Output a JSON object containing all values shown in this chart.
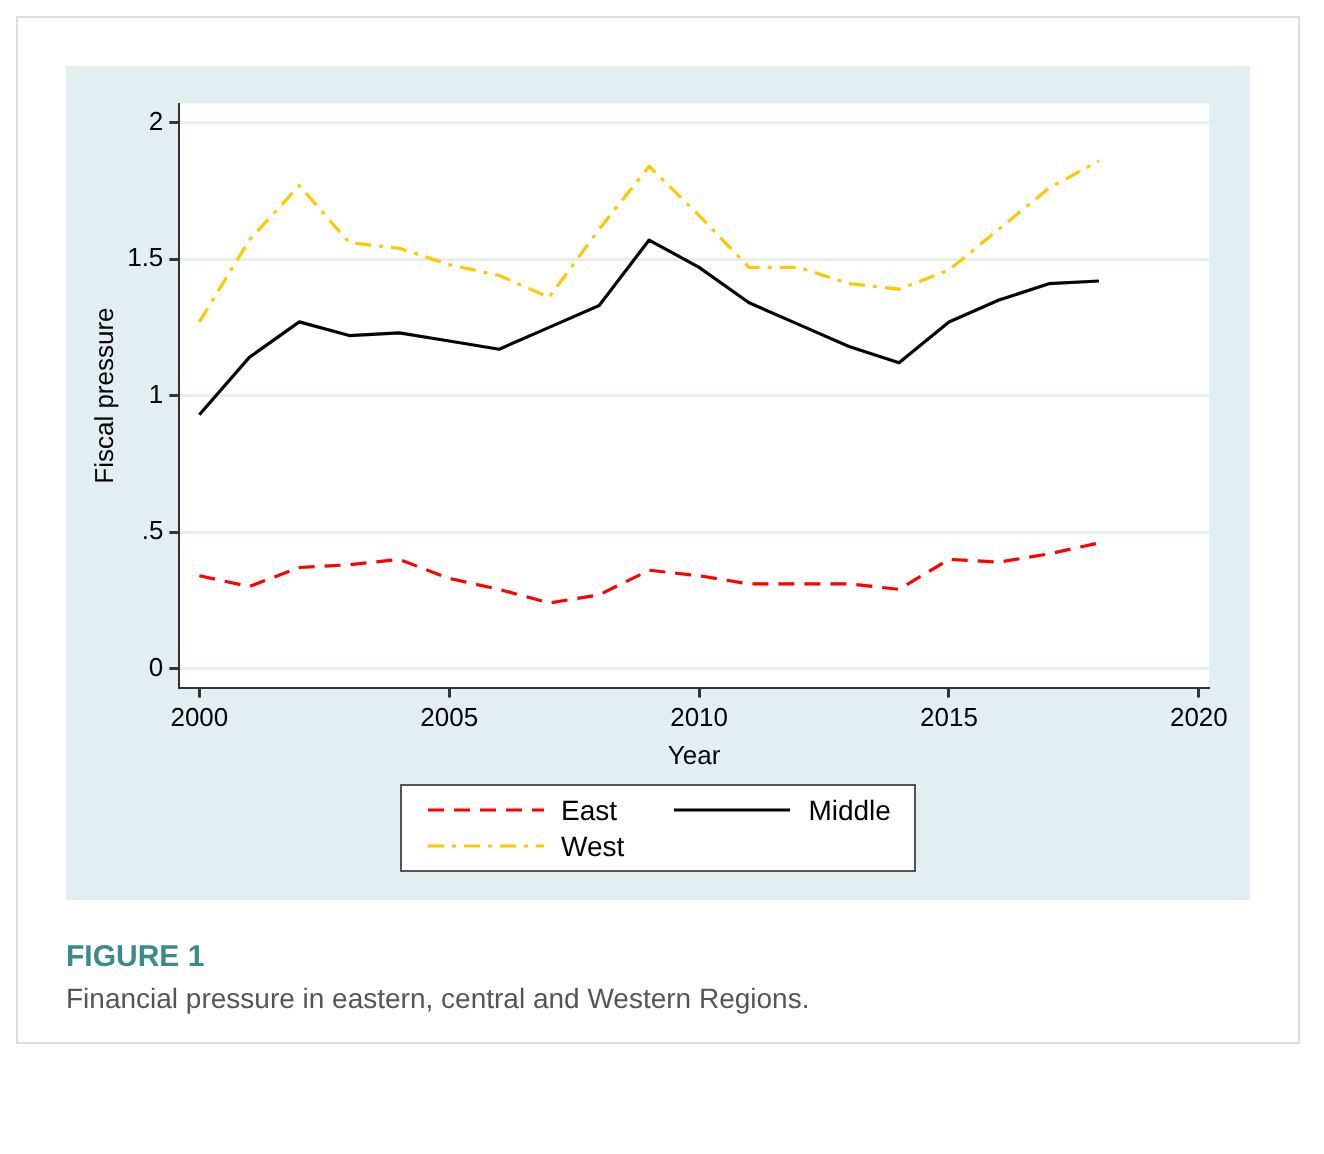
{
  "chart_data": {
    "type": "line",
    "title": "FIGURE 1",
    "subtitle": "Financial pressure in eastern, central and Western Regions.",
    "xlabel": "Year",
    "ylabel": "Fiscal pressure",
    "x": [
      2000,
      2001,
      2002,
      2003,
      2004,
      2005,
      2006,
      2007,
      2008,
      2009,
      2010,
      2011,
      2012,
      2013,
      2014,
      2015,
      2016,
      2017,
      2018
    ],
    "series": [
      {
        "name": "East",
        "color": "#ff0000",
        "line_style": "dashed",
        "values": [
          0.34,
          0.3,
          0.37,
          0.38,
          0.4,
          0.33,
          0.29,
          0.24,
          0.27,
          0.36,
          0.34,
          0.31,
          0.31,
          0.31,
          0.29,
          0.4,
          0.39,
          0.42,
          0.46
        ]
      },
      {
        "name": "Middle",
        "color": "#000000",
        "line_style": "solid",
        "values": [
          0.93,
          1.14,
          1.27,
          1.22,
          1.23,
          1.2,
          1.17,
          1.25,
          1.33,
          1.57,
          1.47,
          1.34,
          1.26,
          1.18,
          1.12,
          1.27,
          1.35,
          1.41,
          1.42
        ]
      },
      {
        "name": "West",
        "color": "#ffc800",
        "line_style": "dashdot",
        "values": [
          1.27,
          1.57,
          1.77,
          1.56,
          1.54,
          1.48,
          1.44,
          1.36,
          1.61,
          1.84,
          1.66,
          1.47,
          1.47,
          1.41,
          1.39,
          1.46,
          1.61,
          1.76,
          1.86
        ]
      }
    ],
    "xlim": [
      1999.6,
      2020.2
    ],
    "xticks": [
      2000,
      2005,
      2010,
      2015,
      2020
    ],
    "ylim": [
      -0.07,
      2.07
    ],
    "yticks": [
      0,
      {
        "value": 0.5,
        "label": ".5"
      },
      1,
      1.5,
      2
    ],
    "grid": "y",
    "legend": "bottom",
    "marker": "none"
  }
}
